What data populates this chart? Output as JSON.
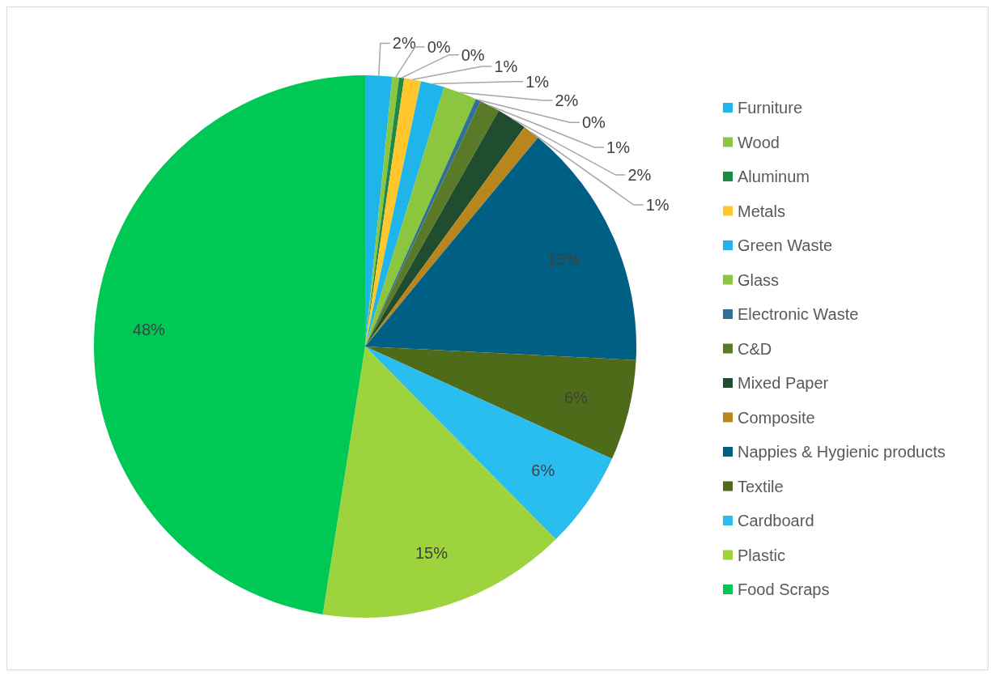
{
  "chart_data": {
    "type": "pie",
    "categories": [
      "Furniture",
      "Wood",
      "Aluminum",
      "Metals",
      "Green Waste",
      "Glass",
      "Electronic Waste",
      "C&D",
      "Mixed Paper",
      "Composite",
      "Nappies & Hygienic products",
      "Textile",
      "Cardboard",
      "Plastic",
      "Food Scraps"
    ],
    "values": [
      1.6,
      0.4,
      0.3,
      1.0,
      1.4,
      2.0,
      0.3,
      1.2,
      1.8,
      1.0,
      14.8,
      6.0,
      5.8,
      14.9,
      47.5
    ],
    "value_labels": [
      "2%",
      "0%",
      "0%",
      "1%",
      "1%",
      "2%",
      "0%",
      "1%",
      "2%",
      "1%",
      "15%",
      "6%",
      "6%",
      "15%",
      "48%"
    ],
    "colors": [
      "#1fb4ea",
      "#8cc63f",
      "#1e8a4a",
      "#ffc62e",
      "#1fb4ea",
      "#8cc63f",
      "#2e7096",
      "#5a7a2a",
      "#1f4d2e",
      "#b8861c",
      "#005f85",
      "#4e6b1a",
      "#29bdf0",
      "#9dd43d",
      "#00c855"
    ],
    "legend": "right"
  }
}
